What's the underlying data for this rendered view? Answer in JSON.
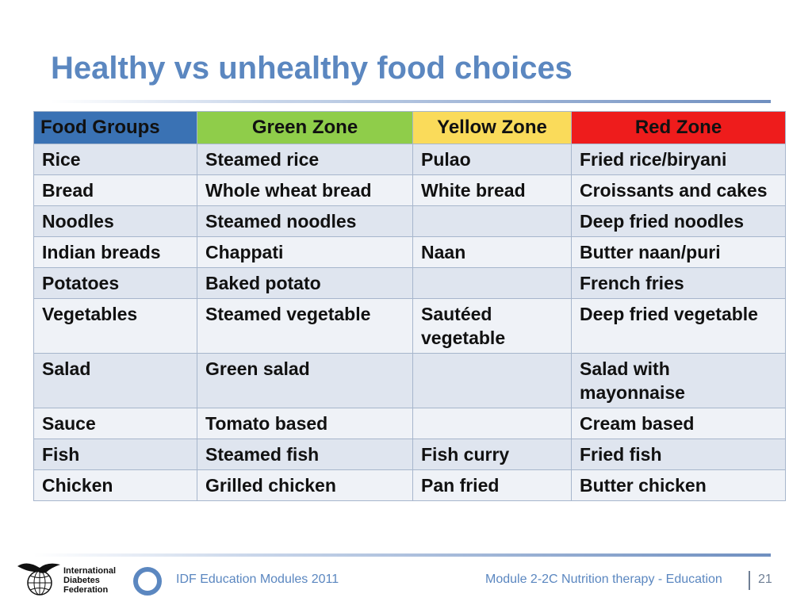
{
  "title": "Healthy vs unhealthy food choices",
  "colors": {
    "food_groups_header": "#3a72b4",
    "green_zone": "#8fcd4a",
    "yellow_zone": "#fadb5a",
    "red_zone": "#ee1c1c"
  },
  "table": {
    "headers": [
      "Food Groups",
      "Green Zone",
      "Yellow Zone",
      "Red Zone"
    ],
    "rows": [
      [
        "Rice",
        "Steamed rice",
        "Pulao",
        "Fried rice/biryani"
      ],
      [
        "Bread",
        "Whole wheat bread",
        "White bread",
        "Croissants and cakes"
      ],
      [
        "Noodles",
        "Steamed noodles",
        "",
        "Deep fried noodles"
      ],
      [
        "Indian breads",
        "Chappati",
        "Naan",
        "Butter naan/puri"
      ],
      [
        "Potatoes",
        "Baked potato",
        "",
        "French fries"
      ],
      [
        "Vegetables",
        "Steamed vegetable",
        "Sautéed vegetable",
        "Deep fried vegetable"
      ],
      [
        "Salad",
        "Green salad",
        "",
        "Salad with mayonnaise"
      ],
      [
        "Sauce",
        "Tomato based",
        "",
        "Cream based"
      ],
      [
        "Fish",
        "Steamed fish",
        "Fish curry",
        "Fried fish"
      ],
      [
        "Chicken",
        "Grilled chicken",
        "Pan fried",
        "Butter chicken"
      ]
    ]
  },
  "footer": {
    "logo_lines": [
      "International",
      "Diabetes",
      "Federation"
    ],
    "logo_icon": "idf-bird-globe-icon",
    "ring_icon": "blue-circle-icon",
    "left_text": "IDF Education Modules 2011",
    "right_text": "Module 2-2C  Nutrition therapy - Education",
    "page_number": "21"
  }
}
